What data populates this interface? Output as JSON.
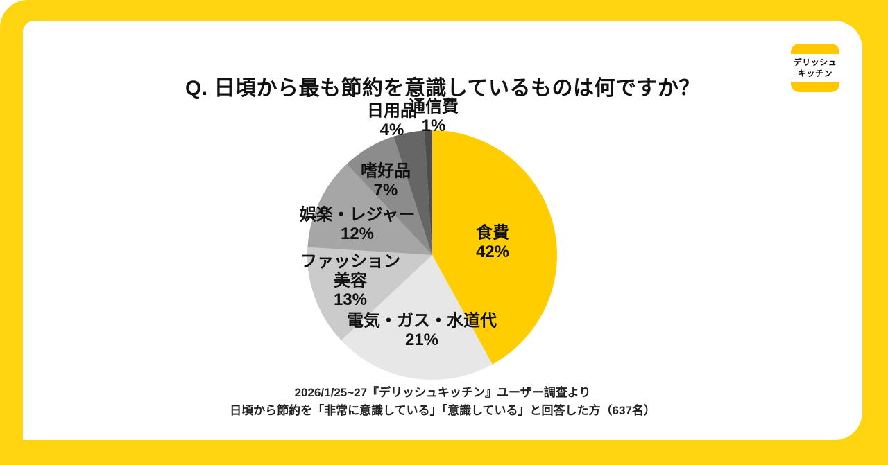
{
  "frame": {
    "background_color": "#FFD411",
    "card_color": "#FFFFFF"
  },
  "title": "Q. 日頃から最も節約を意識しているものは何ですか？",
  "logo": {
    "line1": "デリッシュ",
    "line2": "キッチン",
    "bar_color": "#FFC800"
  },
  "chart_data": {
    "type": "pie",
    "title": "日頃から最も節約を意識しているもの",
    "start_angle_deg": 0,
    "direction": "clockwise",
    "unit": "%",
    "slices": [
      {
        "label": "食費",
        "value": 42,
        "percent_label": "42%",
        "color": "#FFCD00"
      },
      {
        "label": "電気・ガス・水道代",
        "value": 21,
        "percent_label": "21%",
        "color": "#E7E7E7"
      },
      {
        "label": "ファッション\n美容",
        "value": 13,
        "percent_label": "13%",
        "color": "#CBCBCB"
      },
      {
        "label": "娯楽・レジャー",
        "value": 12,
        "percent_label": "12%",
        "color": "#A6A6A6"
      },
      {
        "label": "嗜好品",
        "value": 7,
        "percent_label": "7%",
        "color": "#8C8C8C"
      },
      {
        "label": "日用品",
        "value": 4,
        "percent_label": "4%",
        "color": "#666666"
      },
      {
        "label": "通信費",
        "value": 1,
        "percent_label": "1%",
        "color": "#4D4D4D"
      }
    ]
  },
  "footnote": {
    "line1": "2026/1/25~27『デリッシュキッチン』ユーザー調査より",
    "line2": "日頃から節約を「非常に意識している」「意識している」と回答した方（637名）"
  }
}
